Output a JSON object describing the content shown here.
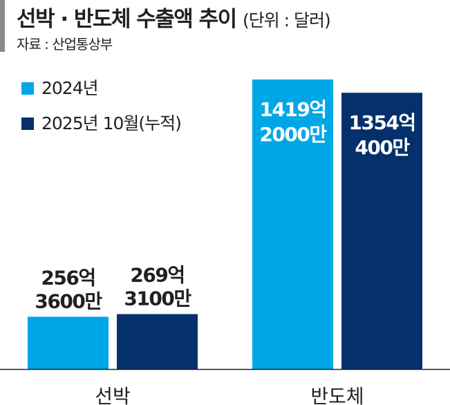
{
  "chart_data": {
    "type": "bar",
    "title": "선박 · 반도체 수출액 추이",
    "unit": "(단위 : 달러)",
    "source": "자료 : 산업통상부",
    "categories": [
      "선박",
      "반도체"
    ],
    "series": [
      {
        "name": "2024년",
        "color": "#00a7e6",
        "values": [
          256.36,
          1419.2
        ],
        "labels": [
          [
            "256억",
            "3600만"
          ],
          [
            "1419억",
            "2000만"
          ]
        ]
      },
      {
        "name": "2025년 10월(누적)",
        "color": "#04306b",
        "values": [
          269.31,
          1354.04
        ],
        "labels": [
          [
            "269억",
            "3100만"
          ],
          [
            "1354억",
            "400만"
          ]
        ]
      }
    ],
    "value_unit": "억 달러",
    "ylim": [
      0,
      1419.2
    ],
    "grid": false,
    "legend": "top-left"
  }
}
